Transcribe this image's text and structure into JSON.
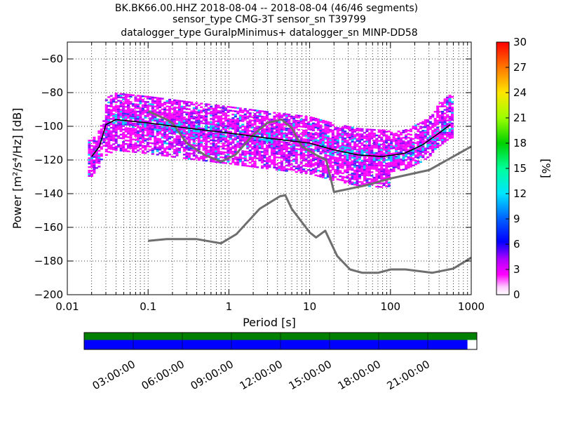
{
  "title": {
    "line1": "BK.BK66.00.HHZ   2018-08-04 -- 2018-08-04  (46/46 segments)",
    "line2": "sensor_type CMG-3T sensor_sn T39799",
    "line3": "datalogger_type GuralpMinimus+ datalogger_sn MINP-DD58"
  },
  "chart_data": {
    "type": "heatmap",
    "xlabel": "Period [s]",
    "ylabel": "Power [m²/s⁴/Hz] [dB]",
    "xscale": "log",
    "xlim": [
      0.01,
      1000
    ],
    "ylim": [
      -200,
      -50
    ],
    "x_ticks": [
      0.01,
      0.1,
      1,
      10,
      100,
      1000
    ],
    "x_tick_labels": [
      "0.01",
      "0.1",
      "1",
      "10",
      "100",
      "1000"
    ],
    "y_ticks": [
      -200,
      -180,
      -160,
      -140,
      -120,
      -100,
      -80,
      -60
    ],
    "y_tick_labels": [
      "−200",
      "−180",
      "−160",
      "−140",
      "−120",
      "−100",
      "−80",
      "−60"
    ],
    "grid": true,
    "colorbar": {
      "label": "[%]",
      "range": [
        0,
        30
      ],
      "ticks": [
        "0",
        "3",
        "6",
        "9",
        "12",
        "15",
        "18",
        "21",
        "24",
        "27",
        "30"
      ]
    },
    "series": [
      {
        "role": "new-high-noise-model",
        "color": "#6e6e6e",
        "x": [
          0.1,
          0.17,
          0.2,
          0.3,
          0.5,
          0.8,
          1.2,
          2,
          3,
          4.5,
          6,
          8,
          12,
          16,
          20,
          50,
          100,
          300,
          1000
        ],
        "y": [
          -91,
          -96,
          -98,
          -110,
          -117,
          -121,
          -117,
          -105,
          -98,
          -96,
          -101,
          -112,
          -117,
          -120,
          -139,
          -135,
          -131,
          -126,
          -112
        ]
      },
      {
        "role": "new-low-noise-model",
        "color": "#6e6e6e",
        "x": [
          0.1,
          0.17,
          0.4,
          0.8,
          1.24,
          2.4,
          4.3,
          5,
          6,
          10,
          12,
          15.6,
          21.9,
          31.6,
          45,
          70,
          101,
          154,
          328,
          600,
          1000
        ],
        "y": [
          -168,
          -167,
          -167,
          -169.5,
          -164,
          -149,
          -141.5,
          -141,
          -149,
          -163,
          -166,
          -162,
          -177,
          -185,
          -187,
          -187,
          -185,
          -185,
          -187,
          -184.5,
          -178
        ]
      },
      {
        "role": "mode",
        "color": "#000000",
        "x": [
          0.02,
          0.025,
          0.03,
          0.04,
          0.1,
          0.3,
          1,
          3,
          10,
          20,
          40,
          80,
          150,
          250,
          400,
          550
        ],
        "y": [
          -118,
          -112,
          -99,
          -96,
          -98,
          -101,
          -104,
          -107,
          -110,
          -114,
          -117,
          -118,
          -116,
          -111,
          -104,
          -99
        ]
      }
    ],
    "time_coverage": {
      "tick_labels": [
        "03:00:00",
        "06:00:00",
        "09:00:00",
        "12:00:00",
        "15:00:00",
        "18:00:00",
        "21:00:00"
      ],
      "coverage_fraction": 0.977
    }
  },
  "colors": {
    "noise_model": "#6e6e6e",
    "coverage_available": "#008000",
    "coverage_used": "#0000ff"
  }
}
